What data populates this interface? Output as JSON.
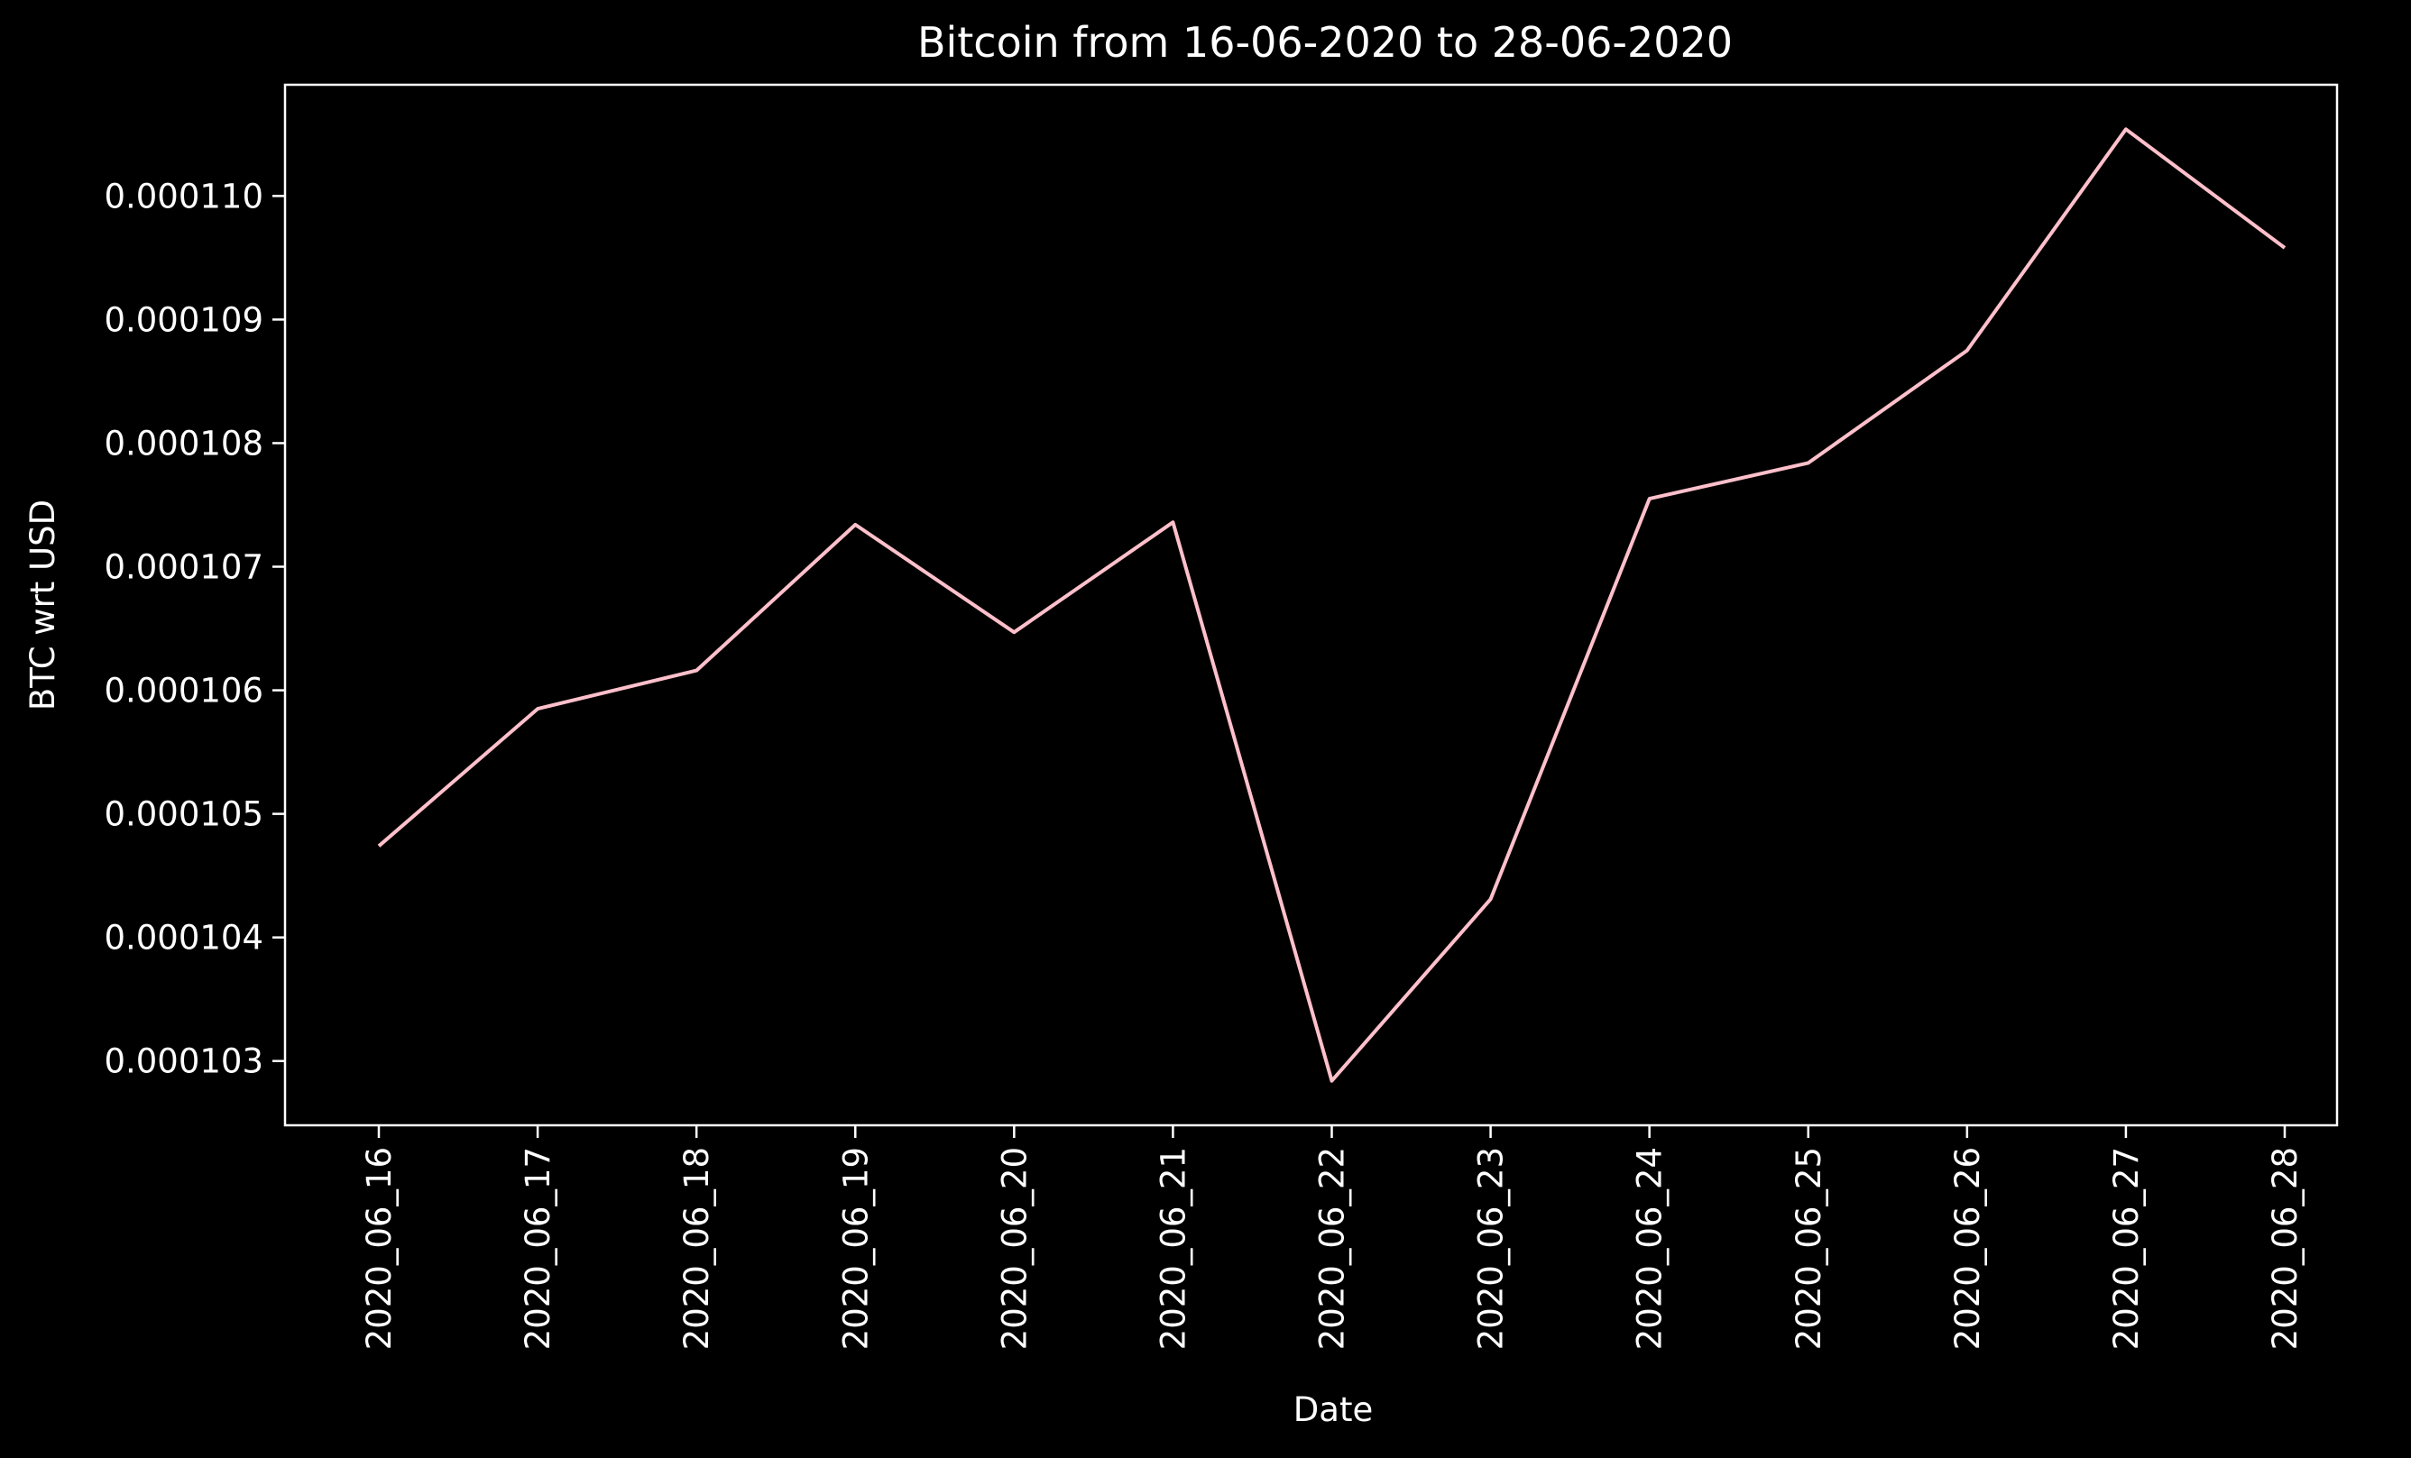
{
  "chart_data": {
    "type": "line",
    "title": "Bitcoin from 16-06-2020 to 28-06-2020",
    "xlabel": "Date",
    "ylabel": "BTC wrt USD",
    "categories": [
      "2020_06_16",
      "2020_06_17",
      "2020_06_18",
      "2020_06_19",
      "2020_06_20",
      "2020_06_21",
      "2020_06_22",
      "2020_06_23",
      "2020_06_24",
      "2020_06_25",
      "2020_06_26",
      "2020_06_27",
      "2020_06_28"
    ],
    "series": [
      {
        "color": "#ffc0cb",
        "values": [
          0.00010474,
          0.00010585,
          0.00010616,
          0.00010734,
          0.00010647,
          0.00010736,
          0.00010284,
          0.00010431,
          0.00010755,
          0.00010784,
          0.00010875,
          0.00011054,
          0.00010958
        ]
      }
    ],
    "y_ticks": [
      "0.000103",
      "0.000104",
      "0.000105",
      "0.000106",
      "0.000107",
      "0.000108",
      "0.000109",
      "0.000110"
    ],
    "ylim": [
      0.00010248,
      0.0001109
    ],
    "grid": false,
    "background": "#000000",
    "foreground": "#ffffff"
  }
}
